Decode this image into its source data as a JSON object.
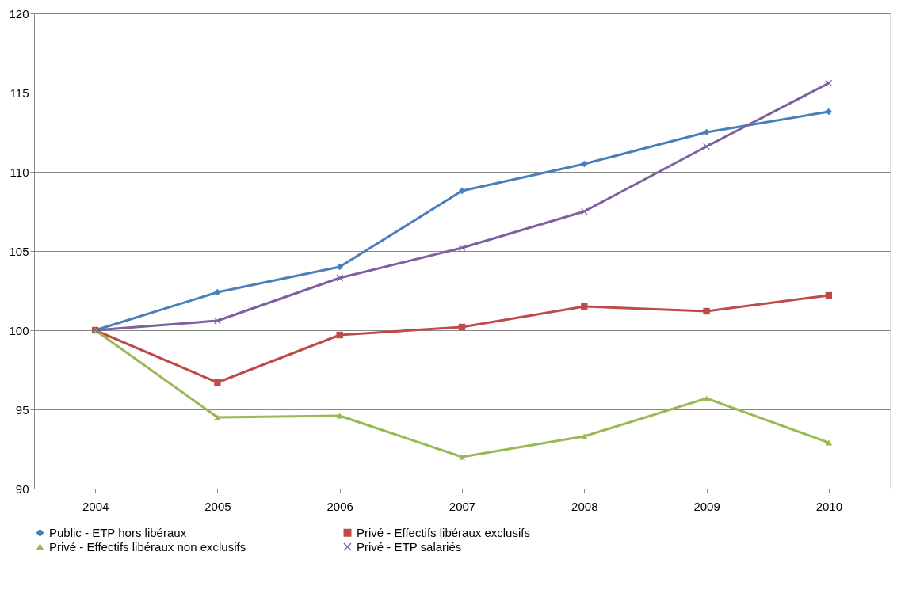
{
  "chart_data": {
    "type": "line",
    "categories": [
      "2004",
      "2005",
      "2006",
      "2007",
      "2008",
      "2009",
      "2010"
    ],
    "ylim": [
      90,
      120
    ],
    "yticks": [
      90,
      95,
      100,
      105,
      110,
      115,
      120
    ],
    "grid": "y",
    "legend": "bottom",
    "line_style": "solid",
    "series": [
      {
        "name": "Public - ETP hors libéraux",
        "color": "#4a7ebb",
        "marker": "diamond",
        "values": [
          100,
          102.4,
          104.0,
          108.8,
          110.5,
          112.5,
          113.8
        ]
      },
      {
        "name": "Privé - Effectifs libéraux exclusifs",
        "color": "#be4b48",
        "marker": "square",
        "values": [
          100,
          96.7,
          99.7,
          100.2,
          101.5,
          101.2,
          102.2
        ]
      },
      {
        "name": "Privé - Effectifs libéraux non exclusifs",
        "color": "#98b954",
        "marker": "triangle",
        "values": [
          100,
          94.5,
          94.6,
          92.0,
          93.3,
          95.7,
          92.9
        ]
      },
      {
        "name": "Privé - ETP salariés",
        "color": "#7d60a0",
        "marker": "cross",
        "values": [
          100,
          100.6,
          103.3,
          105.2,
          107.5,
          111.6,
          115.6
        ]
      }
    ]
  }
}
